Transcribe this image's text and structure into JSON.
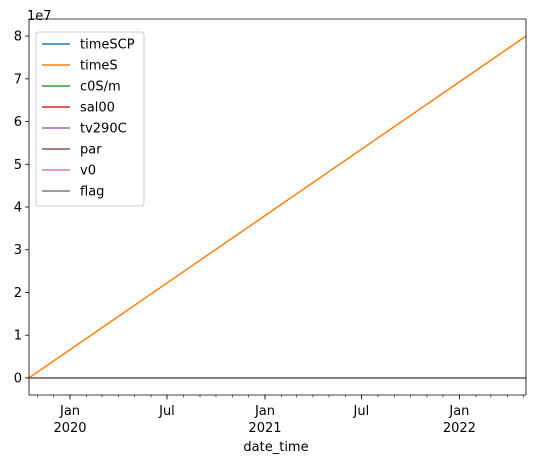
{
  "chart_data": {
    "type": "line",
    "xlabel": "date_time",
    "ylabel": "",
    "y_exponent_label": "1e7",
    "x_range": [
      "2019-10-16",
      "2022-05-06"
    ],
    "ylim": [
      -4000000,
      84000000
    ],
    "grid": false,
    "legend_placement": "top-left",
    "x_ticks": [
      {
        "date": "2020-01-01",
        "label": "Jan",
        "sublabel": "2020"
      },
      {
        "date": "2020-07-01",
        "label": "Jul",
        "sublabel": ""
      },
      {
        "date": "2021-01-01",
        "label": "Jan",
        "sublabel": "2021"
      },
      {
        "date": "2021-07-01",
        "label": "Jul",
        "sublabel": ""
      },
      {
        "date": "2022-01-01",
        "label": "Jan",
        "sublabel": "2022"
      }
    ],
    "y_ticks": [
      {
        "value": 0,
        "label": "0"
      },
      {
        "value": 10000000,
        "label": "1"
      },
      {
        "value": 20000000,
        "label": "2"
      },
      {
        "value": 30000000,
        "label": "3"
      },
      {
        "value": 40000000,
        "label": "4"
      },
      {
        "value": 50000000,
        "label": "5"
      },
      {
        "value": 60000000,
        "label": "6"
      },
      {
        "value": 70000000,
        "label": "7"
      },
      {
        "value": 80000000,
        "label": "8"
      }
    ],
    "series": [
      {
        "name": "timeSCP",
        "color": "#1f77b4",
        "x": [
          "2019-10-16",
          "2022-05-06"
        ],
        "values": [
          0,
          0
        ]
      },
      {
        "name": "timeS",
        "color": "#ff7f0e",
        "x": [
          "2019-10-16",
          "2022-05-06"
        ],
        "values": [
          0,
          80000000
        ]
      },
      {
        "name": "c0S/m",
        "color": "#2ca02c",
        "x": [
          "2019-10-16",
          "2022-05-06"
        ],
        "values": [
          0,
          0
        ]
      },
      {
        "name": "sal00",
        "color": "#d62728",
        "x": [
          "2019-10-16",
          "2022-05-06"
        ],
        "values": [
          0,
          0
        ]
      },
      {
        "name": "tv290C",
        "color": "#9467bd",
        "x": [
          "2019-10-16",
          "2022-05-06"
        ],
        "values": [
          0,
          0
        ]
      },
      {
        "name": "par",
        "color": "#8c564b",
        "x": [
          "2019-10-16",
          "2022-05-06"
        ],
        "values": [
          0,
          0
        ]
      },
      {
        "name": "v0",
        "color": "#e377c2",
        "x": [
          "2019-10-16",
          "2022-05-06"
        ],
        "values": [
          0,
          0
        ]
      },
      {
        "name": "flag",
        "color": "#7f7f7f",
        "x": [
          "2019-10-16",
          "2022-05-06"
        ],
        "values": [
          0,
          0
        ]
      }
    ]
  }
}
